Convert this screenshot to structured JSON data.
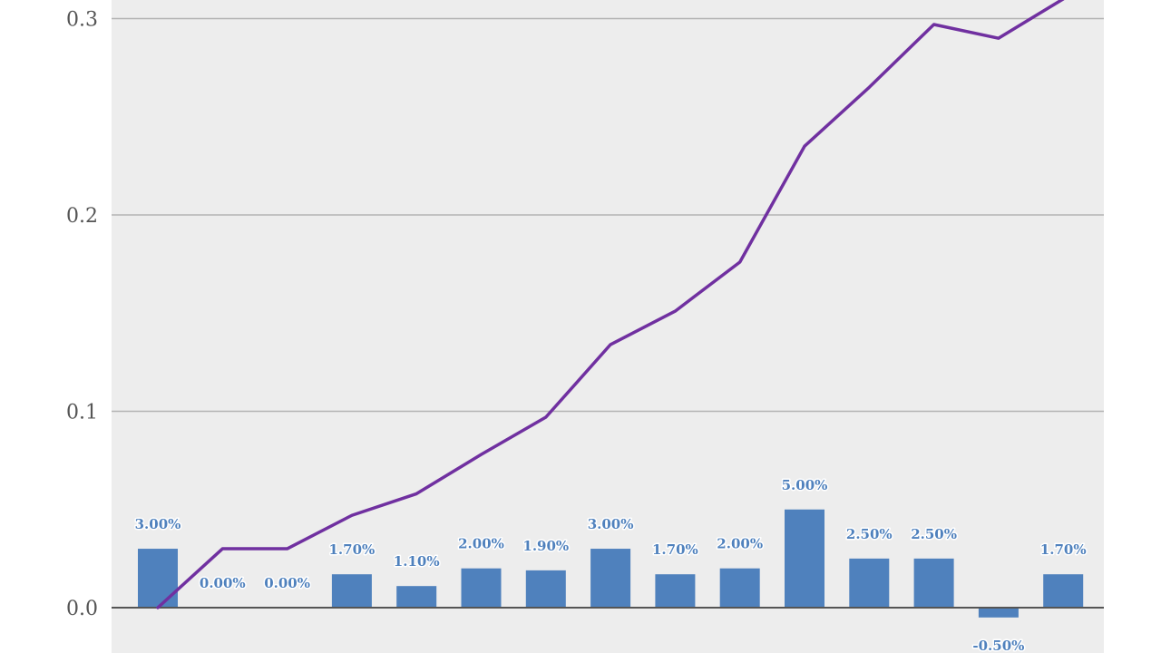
{
  "chart_data": {
    "type": "bar",
    "title": "",
    "xlabel": "",
    "ylabel": "",
    "ylim": [
      -0.023,
      0.322
    ],
    "yticks": [
      "0.0",
      "0.1",
      "0.2",
      "0.3"
    ],
    "ytick_values": [
      0,
      0.1,
      0.2,
      0.3
    ],
    "grid": true,
    "series": [
      {
        "kind": "bar",
        "color": "#4f81bd",
        "values": [
          0.03,
          0.0,
          0.0,
          0.017,
          0.011,
          0.02,
          0.019,
          0.03,
          0.017,
          0.02,
          0.05,
          0.025,
          0.025,
          -0.005,
          0.017
        ],
        "labels": [
          "3.00%",
          "0.00%",
          "0.00%",
          "1.70%",
          "1.10%",
          "2.00%",
          "1.90%",
          "3.00%",
          "1.70%",
          "2.00%",
          "5.00%",
          "2.50%",
          "2.50%",
          "-0.50%",
          "1.70%"
        ]
      },
      {
        "kind": "line",
        "color": "#7030a0",
        "values": [
          0.0,
          0.03,
          0.03,
          0.047,
          0.058,
          0.078,
          0.097,
          0.134,
          0.151,
          0.176,
          0.235,
          0.265,
          0.297,
          0.29,
          0.31
        ]
      }
    ]
  }
}
